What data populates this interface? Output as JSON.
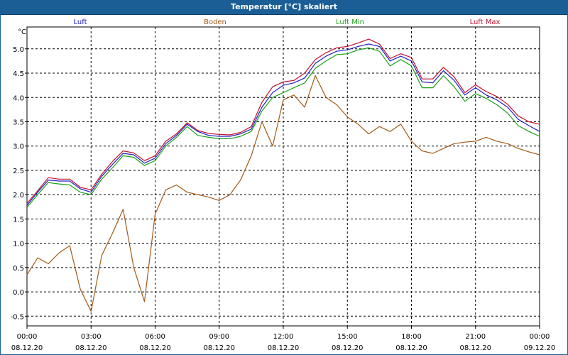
{
  "window": {
    "title": "Temperatur [°C] skaliert"
  },
  "chart_data": {
    "type": "line",
    "title": "Temperatur [°C] skaliert",
    "ylabel": "°C",
    "xlabel": "",
    "ylim": [
      -0.7,
      5.45
    ],
    "xlim": [
      0,
      24
    ],
    "grid": true,
    "yticks": [
      -0.5,
      0.0,
      0.5,
      1.0,
      1.5,
      2.0,
      2.5,
      3.0,
      3.5,
      4.0,
      4.5,
      5.0
    ],
    "ytick_labels": [
      "-0.5",
      "0.0",
      "0.5",
      "1.0",
      "1.5",
      "2.0",
      "2.5",
      "3.0",
      "3.5",
      "4.0",
      "4.5",
      "5.0"
    ],
    "xticks": [
      0,
      3,
      6,
      9,
      12,
      15,
      18,
      21,
      24
    ],
    "xtick_labels": [
      [
        "00:00",
        "08.12.20"
      ],
      [
        "03:00",
        "08.12.20"
      ],
      [
        "06:00",
        "08.12.20"
      ],
      [
        "09:00",
        "08.12.20"
      ],
      [
        "12:00",
        "08.12.20"
      ],
      [
        "15:00",
        "08.12.20"
      ],
      [
        "18:00",
        "08.12.20"
      ],
      [
        "21:00",
        "08.12.20"
      ],
      [
        "00:00",
        "09.12.20"
      ]
    ],
    "legend": [
      {
        "name": "Luft",
        "color": "#2020c0"
      },
      {
        "name": "Boden",
        "color": "#a05a1a"
      },
      {
        "name": "Luft Min",
        "color": "#1aa01a"
      },
      {
        "name": "Luft Max",
        "color": "#c01030"
      }
    ],
    "x": [
      0,
      0.5,
      1,
      1.5,
      2,
      2.5,
      3,
      3.5,
      4,
      4.5,
      5,
      5.5,
      6,
      6.5,
      7,
      7.5,
      8,
      8.5,
      9,
      9.5,
      10,
      10.5,
      11,
      11.5,
      12,
      12.5,
      13,
      13.5,
      14,
      14.5,
      15,
      15.5,
      16,
      16.5,
      17,
      17.5,
      18,
      18.5,
      19,
      19.5,
      20,
      20.5,
      21,
      21.5,
      22,
      22.5,
      23,
      23.5,
      24
    ],
    "series": [
      {
        "name": "Luft",
        "color": "#2020c0",
        "values": [
          1.78,
          2.05,
          2.3,
          2.28,
          2.28,
          2.12,
          2.05,
          2.38,
          2.62,
          2.85,
          2.82,
          2.65,
          2.75,
          3.05,
          3.22,
          3.45,
          3.3,
          3.22,
          3.2,
          3.2,
          3.25,
          3.35,
          3.8,
          4.1,
          4.25,
          4.3,
          4.4,
          4.7,
          4.85,
          4.95,
          4.98,
          5.05,
          5.1,
          5.05,
          4.75,
          4.85,
          4.75,
          4.32,
          4.3,
          4.55,
          4.35,
          4.05,
          4.2,
          4.05,
          3.95,
          3.8,
          3.55,
          3.42,
          3.3
        ]
      },
      {
        "name": "Boden",
        "color": "#a05a1a",
        "values": [
          0.35,
          0.7,
          0.58,
          0.8,
          0.95,
          0.05,
          -0.4,
          0.75,
          1.2,
          1.7,
          0.5,
          -0.2,
          1.6,
          2.1,
          2.2,
          2.05,
          2.0,
          1.95,
          1.88,
          2.0,
          2.3,
          2.8,
          3.5,
          3.0,
          3.95,
          4.05,
          3.8,
          4.45,
          4.0,
          3.85,
          3.6,
          3.45,
          3.25,
          3.4,
          3.3,
          3.45,
          3.1,
          2.9,
          2.85,
          2.95,
          3.05,
          3.08,
          3.1,
          3.18,
          3.1,
          3.05,
          2.95,
          2.88,
          2.82
        ]
      },
      {
        "name": "Luft Min",
        "color": "#1aa01a",
        "values": [
          1.74,
          2.0,
          2.25,
          2.22,
          2.2,
          2.05,
          2.0,
          2.32,
          2.55,
          2.8,
          2.77,
          2.6,
          2.7,
          3.0,
          3.18,
          3.4,
          3.22,
          3.18,
          3.15,
          3.15,
          3.2,
          3.3,
          3.72,
          4.0,
          4.1,
          4.2,
          4.3,
          4.6,
          4.75,
          4.88,
          4.9,
          4.98,
          5.02,
          4.95,
          4.65,
          4.78,
          4.65,
          4.2,
          4.2,
          4.45,
          4.22,
          3.92,
          4.08,
          3.98,
          3.85,
          3.68,
          3.42,
          3.3,
          3.2
        ]
      },
      {
        "name": "Luft Max",
        "color": "#c01030",
        "values": [
          1.82,
          2.08,
          2.35,
          2.32,
          2.32,
          2.15,
          2.1,
          2.42,
          2.68,
          2.9,
          2.86,
          2.7,
          2.8,
          3.1,
          3.25,
          3.48,
          3.32,
          3.26,
          3.24,
          3.23,
          3.28,
          3.4,
          3.9,
          4.22,
          4.32,
          4.35,
          4.5,
          4.78,
          4.92,
          5.02,
          5.05,
          5.12,
          5.2,
          5.1,
          4.8,
          4.9,
          4.82,
          4.38,
          4.38,
          4.62,
          4.42,
          4.1,
          4.26,
          4.12,
          4.02,
          3.86,
          3.62,
          3.5,
          3.45
        ]
      }
    ]
  }
}
